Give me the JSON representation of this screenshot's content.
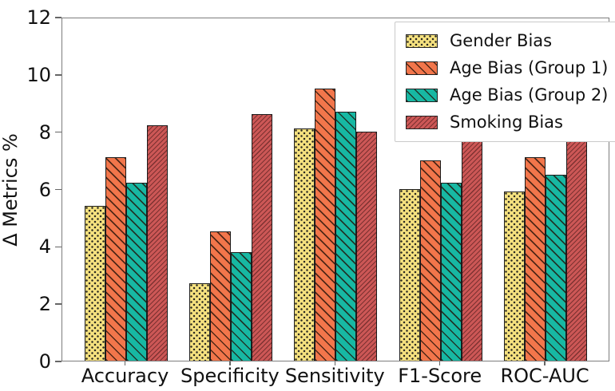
{
  "figure": {
    "background_color": "#ffffff",
    "spine_color": "#7d7d7d"
  },
  "chart_data": {
    "type": "bar",
    "title": "",
    "xlabel": "",
    "ylabel": "Δ Metrics %",
    "ylim": [
      0,
      12
    ],
    "yticks": [
      0,
      2,
      4,
      6,
      8,
      10,
      12
    ],
    "grid": false,
    "legend_position": "upper right",
    "categories": [
      "Accuracy",
      "Specificity",
      "Sensitivity",
      "F1-Score",
      "ROC-AUC"
    ],
    "series": [
      {
        "name": "Gender Bias",
        "color": "#F5E17F",
        "hatch": "dots",
        "values": [
          5.4,
          2.7,
          8.1,
          6.0,
          5.9
        ]
      },
      {
        "name": "Age Bias (Group 1)",
        "color": "#F2764B",
        "hatch": "backslash",
        "values": [
          7.1,
          4.5,
          9.5,
          7.0,
          7.1
        ]
      },
      {
        "name": "Age Bias (Group 2)",
        "color": "#17B8A3",
        "hatch": "backslash",
        "values": [
          6.2,
          3.8,
          8.7,
          6.2,
          6.5
        ]
      },
      {
        "name": "Smoking Bias",
        "color": "#CC5756",
        "hatch": "slash-fine",
        "values": [
          8.2,
          8.6,
          8.0,
          8.4,
          8.2
        ]
      }
    ]
  }
}
